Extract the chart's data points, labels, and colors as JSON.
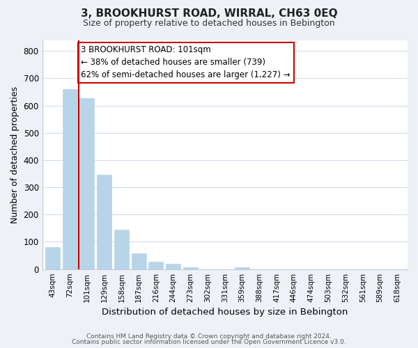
{
  "title": "3, BROOKHURST ROAD, WIRRAL, CH63 0EQ",
  "subtitle": "Size of property relative to detached houses in Bebington",
  "xlabel": "Distribution of detached houses by size in Bebington",
  "ylabel": "Number of detached properties",
  "bar_labels": [
    "43sqm",
    "72sqm",
    "101sqm",
    "129sqm",
    "158sqm",
    "187sqm",
    "216sqm",
    "244sqm",
    "273sqm",
    "302sqm",
    "331sqm",
    "359sqm",
    "388sqm",
    "417sqm",
    "446sqm",
    "474sqm",
    "503sqm",
    "532sqm",
    "561sqm",
    "589sqm",
    "618sqm"
  ],
  "bar_values": [
    82,
    660,
    628,
    347,
    145,
    57,
    27,
    19,
    8,
    0,
    0,
    7,
    0,
    0,
    0,
    0,
    0,
    0,
    0,
    0,
    0
  ],
  "highlight_index": 2,
  "bar_color": "#b8d4e8",
  "highlight_line_color": "#cc0000",
  "ylim": [
    0,
    840
  ],
  "yticks": [
    0,
    100,
    200,
    300,
    400,
    500,
    600,
    700,
    800
  ],
  "annotation_title": "3 BROOKHURST ROAD: 101sqm",
  "annotation_line1": "← 38% of detached houses are smaller (739)",
  "annotation_line2": "62% of semi-detached houses are larger (1,227) →",
  "footer_line1": "Contains HM Land Registry data © Crown copyright and database right 2024.",
  "footer_line2": "Contains public sector information licensed under the Open Government Licence v3.0.",
  "background_color": "#eef2f7",
  "plot_bg_color": "#ffffff",
  "grid_color": "#ccd8e8"
}
